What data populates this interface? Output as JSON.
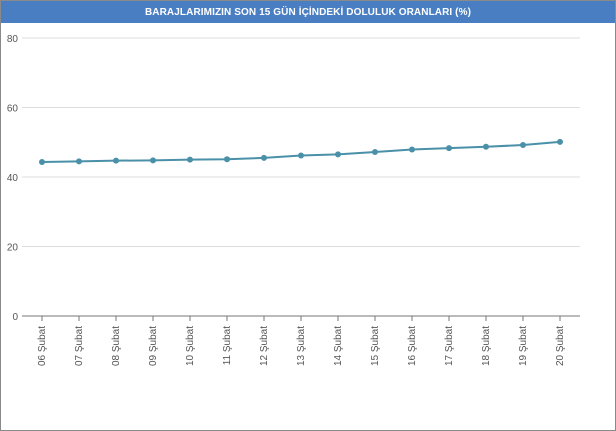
{
  "chart_data": {
    "type": "line",
    "title": "BARAJLARIMIZIN SON 15 GÜN İÇİNDEKİ DOLULUK ORANLARI (%)",
    "xlabel": "",
    "ylabel": "",
    "ylim": [
      0,
      80
    ],
    "yticks": [
      "80",
      "60",
      "40",
      "20",
      "0"
    ],
    "grid": true,
    "categories": [
      "06 Şubat",
      "07 Şubat",
      "08 Şubat",
      "09 Şubat",
      "10 Şubat",
      "11 Şubat",
      "12 Şubat",
      "13 Şubat",
      "14 Şubat",
      "15 Şubat",
      "16 Şubat",
      "17 Şubat",
      "18 Şubat",
      "19 Şubat",
      "20 Şubat"
    ],
    "series": [
      {
        "values": [
          44.3,
          44.5,
          44.7,
          44.8,
          45.0,
          45.1,
          45.5,
          46.2,
          46.5,
          47.2,
          47.9,
          48.3,
          48.7,
          49.2,
          50.1
        ]
      }
    ]
  },
  "colors": {
    "title_bar": "#4a7ec2",
    "line": "#4a90a8",
    "grid": "#dddddd",
    "axis": "#777777"
  }
}
